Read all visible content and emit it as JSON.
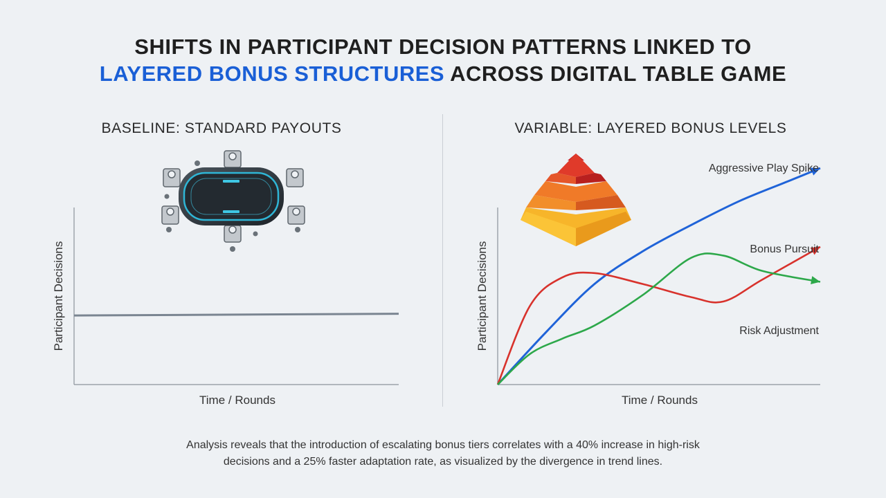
{
  "header": {
    "title_line1": "SHIFTS IN PARTICIPANT DECISION PATTERNS LINKED TO",
    "title_accent": "LAYERED BONUS STRUCTURES",
    "title_rest": " ACROSS DIGITAL TABLE GAME"
  },
  "colors": {
    "accent": "#1a5fd6",
    "baseline_line": "#7a8591",
    "aggressive": "#1f63d8",
    "bonus": "#d8322c",
    "risk": "#2da84a"
  },
  "caption": {
    "line1": "Analysis reveals that the introduction of escalating bonus tiers correlates with a 40% increase in high-risk",
    "line2": "decisions and a 25% faster adaptation rate, as visualized by the divergence in trend lines."
  },
  "icons": {
    "left": "poker-table-with-players-icon",
    "right": "layered-pyramid-icon"
  },
  "chart_data": [
    {
      "type": "line",
      "title": "BASELINE: STANDARD PAYOUTS",
      "xlabel": "Time / Rounds",
      "ylabel": "Participant Decisions",
      "xlim": [
        0,
        100
      ],
      "ylim": [
        0,
        100
      ],
      "grid": false,
      "series": [
        {
          "x": [
            0,
            100
          ],
          "values": [
            39,
            40
          ]
        }
      ]
    },
    {
      "type": "line",
      "title": "VARIABLE: LAYERED BONUS LEVELS",
      "xlabel": "Time / Rounds",
      "ylabel": "Participant Decisions",
      "xlim": [
        0,
        100
      ],
      "ylim": [
        0,
        100
      ],
      "grid": false,
      "series": [
        {
          "name": "Aggressive Play Spike",
          "x": [
            0,
            15,
            30,
            45,
            60,
            75,
            90,
            100
          ],
          "values": [
            0,
            24,
            46,
            61,
            73,
            84,
            93,
            99
          ]
        },
        {
          "name": "Bonus Pursuit",
          "x": [
            0,
            10,
            20,
            30,
            45,
            60,
            70,
            82,
            100
          ],
          "values": [
            0,
            36,
            49,
            51,
            46,
            40,
            38,
            48,
            63
          ]
        },
        {
          "name": "Risk Adjustment",
          "x": [
            0,
            10,
            20,
            30,
            45,
            60,
            70,
            82,
            100
          ],
          "values": [
            0,
            14,
            21,
            27,
            41,
            58,
            59,
            52,
            47
          ]
        }
      ]
    }
  ]
}
